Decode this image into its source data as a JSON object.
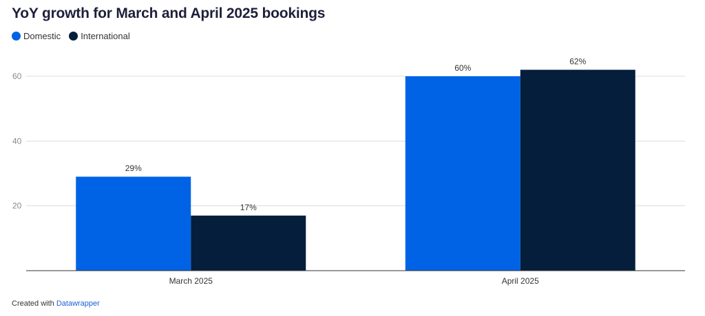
{
  "chart_data": {
    "type": "bar",
    "title": "YoY growth for March and April 2025 bookings",
    "categories": [
      "March 2025",
      "April 2025"
    ],
    "series": [
      {
        "name": "Domestic",
        "values": [
          29,
          60
        ],
        "labels": [
          "29%",
          "60%"
        ],
        "color": "#0063e5"
      },
      {
        "name": "International",
        "values": [
          17,
          62
        ],
        "labels": [
          "17%",
          "62%"
        ],
        "color": "#041e3c"
      }
    ],
    "yticks": [
      20,
      40,
      60
    ],
    "ylim": [
      0,
      60
    ],
    "grid": true,
    "legend_position": "top-left"
  },
  "footer": {
    "prefix": "Created with",
    "link": "Datawrapper"
  }
}
